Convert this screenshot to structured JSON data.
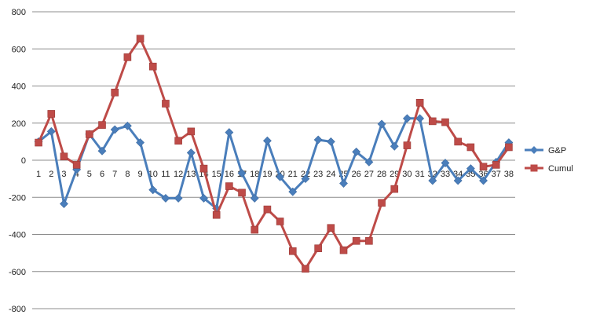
{
  "chart_data": {
    "type": "line",
    "title": "",
    "xlabel": "",
    "ylabel": "",
    "ylim": [
      -800,
      800
    ],
    "yticks": [
      800,
      600,
      400,
      200,
      0,
      -200,
      -400,
      -600,
      -800
    ],
    "grid": true,
    "legend_position": "right",
    "categories": [
      "1",
      "2",
      "3",
      "4",
      "5",
      "6",
      "7",
      "8",
      "9",
      "10",
      "11",
      "12",
      "13",
      "14",
      "15",
      "16",
      "17",
      "18",
      "19",
      "20",
      "21",
      "22",
      "23",
      "24",
      "25",
      "26",
      "27",
      "28",
      "29",
      "30",
      "31",
      "32",
      "33",
      "34",
      "35",
      "36",
      "37",
      "38"
    ],
    "series": [
      {
        "name": "G&P",
        "color": "#4a7ebb",
        "marker": "diamond",
        "values": [
          100,
          155,
          -235,
          -50,
          140,
          50,
          165,
          185,
          95,
          -160,
          -205,
          -205,
          40,
          -205,
          -260,
          150,
          -70,
          -205,
          105,
          -90,
          -170,
          -100,
          110,
          100,
          -125,
          45,
          -10,
          195,
          75,
          225,
          225,
          -110,
          -15,
          -110,
          -45,
          -110,
          -10,
          95
        ]
      },
      {
        "name": "Cumul",
        "color": "#be4b48",
        "marker": "square",
        "values": [
          95,
          250,
          20,
          -25,
          140,
          190,
          365,
          555,
          655,
          505,
          305,
          105,
          155,
          -45,
          -295,
          -140,
          -175,
          -375,
          -265,
          -330,
          -490,
          -585,
          -475,
          -365,
          -485,
          -435,
          -435,
          -230,
          -155,
          80,
          310,
          210,
          205,
          100,
          70,
          -35,
          -25,
          70
        ]
      }
    ]
  }
}
